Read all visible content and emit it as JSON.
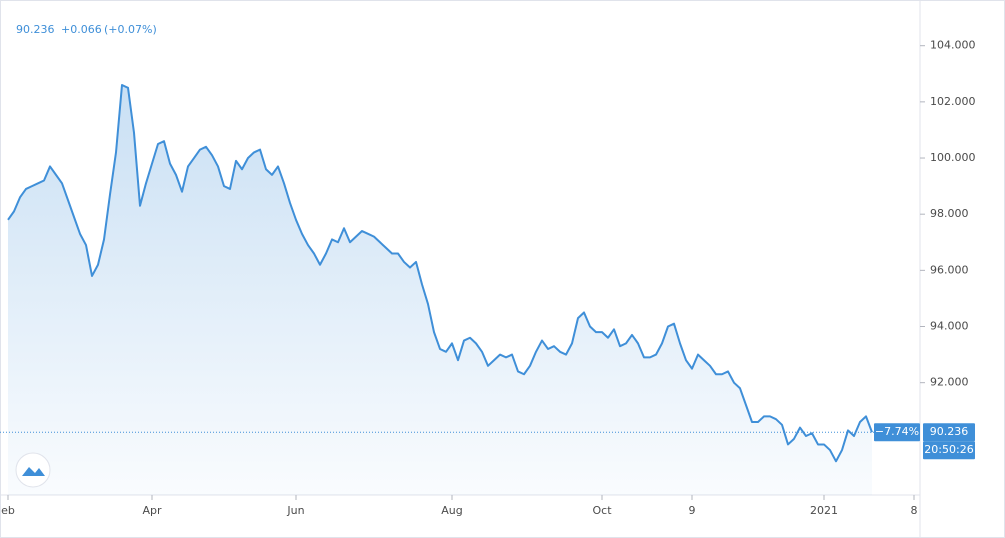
{
  "chart_data": {
    "type": "area",
    "header": {
      "price": "90.236",
      "change": "+0.066",
      "change_pct": "(+0.07%)"
    },
    "last_label": "90.236",
    "change_label": "−7.74%",
    "time_label": "20:50:26",
    "color": "#3f8fd8",
    "categories": [
      "eb",
      null,
      null,
      null,
      null,
      null,
      null,
      null,
      null,
      null,
      null,
      null,
      null,
      null,
      null,
      null,
      null,
      null,
      null,
      null,
      null,
      null,
      null,
      null,
      "Apr",
      null,
      null,
      null,
      null,
      null,
      null,
      null,
      null,
      null,
      null,
      null,
      null,
      null,
      null,
      null,
      null,
      null,
      null,
      null,
      null,
      null,
      null,
      null,
      "Jun",
      null,
      null,
      null,
      null,
      null,
      null,
      null,
      null,
      null,
      null,
      null,
      null,
      null,
      null,
      null,
      null,
      null,
      null,
      null,
      null,
      null,
      null,
      null,
      null,
      null,
      "Aug",
      null,
      null,
      null,
      null,
      null,
      null,
      null,
      null,
      null,
      null,
      null,
      null,
      null,
      null,
      null,
      null,
      null,
      null,
      null,
      null,
      null,
      null,
      null,
      null,
      "Oct",
      null,
      null,
      null,
      null,
      null,
      null,
      null,
      null,
      null,
      null,
      null,
      null,
      null,
      null,
      "9",
      null,
      null,
      null,
      null,
      null,
      null,
      null,
      null,
      null,
      null,
      null,
      null,
      null,
      null,
      null,
      null,
      null,
      null,
      null,
      null,
      null,
      "2021",
      null,
      null,
      null,
      null,
      null,
      null,
      null,
      null,
      null,
      null,
      null,
      null,
      null,
      null,
      "8"
    ],
    "values": [
      97.8,
      98.1,
      98.6,
      98.9,
      99.0,
      99.1,
      99.2,
      99.7,
      99.4,
      99.1,
      98.5,
      97.9,
      97.3,
      96.9,
      95.8,
      96.2,
      97.1,
      98.7,
      100.2,
      102.6,
      102.5,
      100.9,
      98.3,
      99.1,
      99.8,
      100.5,
      100.6,
      99.8,
      99.4,
      98.8,
      99.7,
      100.0,
      100.3,
      100.4,
      100.1,
      99.7,
      99.0,
      98.9,
      99.9,
      99.6,
      100.0,
      100.2,
      100.3,
      99.6,
      99.4,
      99.7,
      99.1,
      98.4,
      97.8,
      97.3,
      96.9,
      96.6,
      96.2,
      96.6,
      97.1,
      97.0,
      97.5,
      97.0,
      97.2,
      97.4,
      97.3,
      97.2,
      97.0,
      96.8,
      96.6,
      96.6,
      96.3,
      96.1,
      96.3,
      95.5,
      94.8,
      93.8,
      93.2,
      93.1,
      93.4,
      92.8,
      93.5,
      93.6,
      93.4,
      93.1,
      92.6,
      92.8,
      93.0,
      92.9,
      93.0,
      92.4,
      92.3,
      92.6,
      93.1,
      93.5,
      93.2,
      93.3,
      93.1,
      93.0,
      93.4,
      94.3,
      94.5,
      94.0,
      93.8,
      93.8,
      93.6,
      93.9,
      93.3,
      93.4,
      93.7,
      93.4,
      92.9,
      92.9,
      93.0,
      93.4,
      94.0,
      94.1,
      93.4,
      92.8,
      92.5,
      93.0,
      92.8,
      92.6,
      92.3,
      92.3,
      92.4,
      92.0,
      91.8,
      91.2,
      90.6,
      90.6,
      90.8,
      90.8,
      90.7,
      90.5,
      89.8,
      90.0,
      90.4,
      90.1,
      90.2,
      89.8,
      89.8,
      89.6,
      89.2,
      89.6,
      90.3,
      90.1,
      90.6,
      90.8,
      90.236,
      null,
      null,
      null,
      null,
      null,
      null,
      null
    ],
    "ylim": [
      88,
      105.2
    ],
    "yticks": [
      {
        "value": 92,
        "label": "92.000"
      },
      {
        "value": 94,
        "label": "94.000"
      },
      {
        "value": 96,
        "label": "96.000"
      },
      {
        "value": 98,
        "label": "98.000"
      },
      {
        "value": 100,
        "label": "100.000"
      },
      {
        "value": 102,
        "label": "102.000"
      },
      {
        "value": 104,
        "label": "104.000"
      }
    ],
    "grid": false
  }
}
